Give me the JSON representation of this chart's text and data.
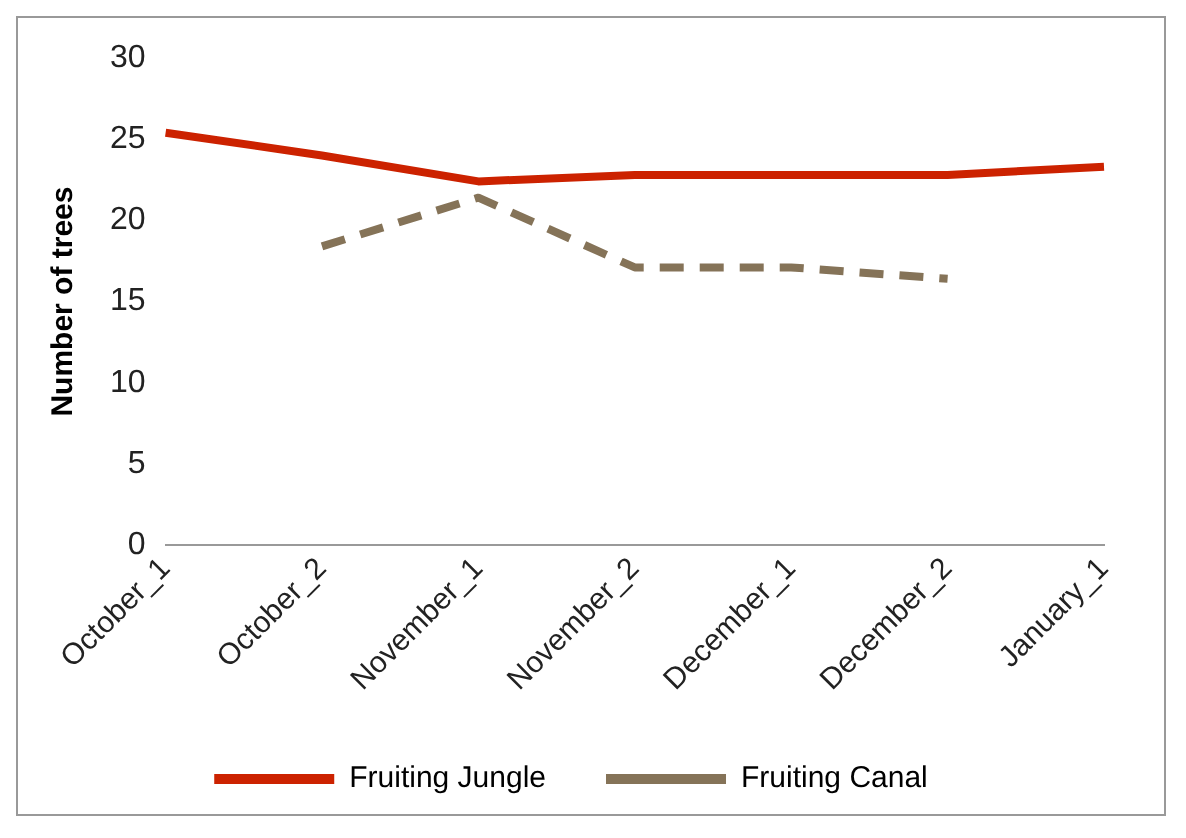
{
  "chart_data": {
    "type": "line",
    "ylabel": "Number of trees",
    "categories": [
      "October_1",
      "October_2",
      "November_1",
      "November_2",
      "December_1",
      "December_2",
      "January_1"
    ],
    "series": [
      {
        "name": "Fruiting Jungle",
        "color": "#cc2200",
        "values": [
          25.4,
          24,
          22.4,
          22.8,
          22.8,
          22.8,
          23.3
        ],
        "line_style": "solid"
      },
      {
        "name": "Fruiting Canal",
        "color": "#857358",
        "values": [
          null,
          18.4,
          21.4,
          17.1,
          17.1,
          16.4,
          null
        ],
        "line_style": "dashed"
      }
    ],
    "ylim": [
      0,
      30
    ],
    "yticks": [
      0,
      5,
      10,
      15,
      20,
      25,
      30
    ],
    "grid": false,
    "legend": "bottom",
    "marker": "none"
  }
}
